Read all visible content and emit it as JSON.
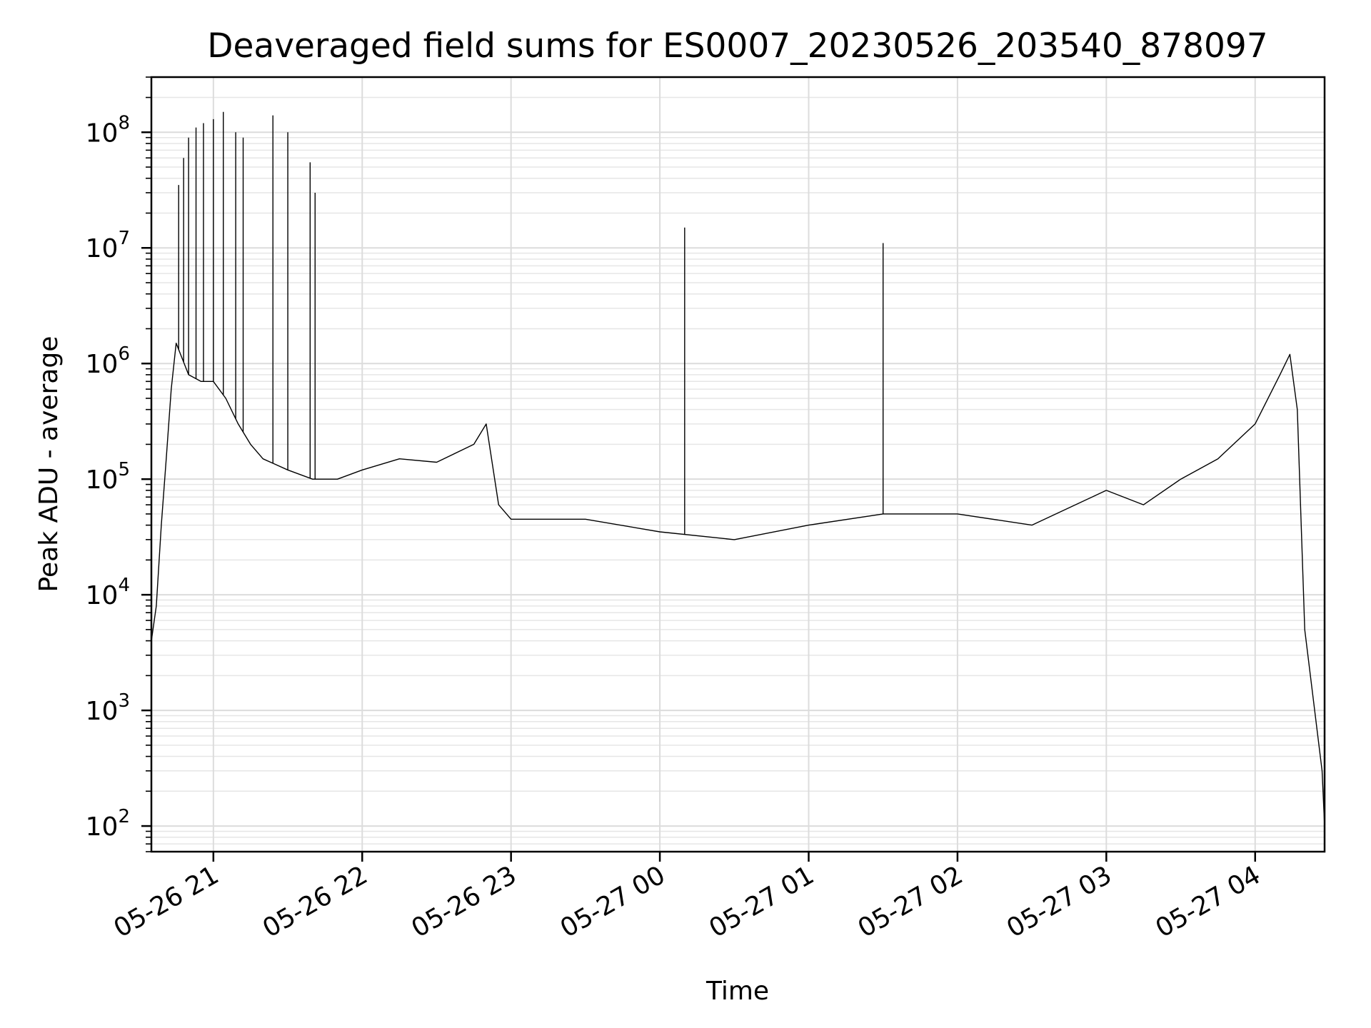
{
  "chart_data": {
    "type": "line",
    "title": "Deaveraged field sums for ES0007_20230526_203540_878097",
    "xlabel": "Time",
    "ylabel": "Peak ADU - average",
    "yscale": "log",
    "ylim": [
      60,
      300000000
    ],
    "xlim": [
      "2023-05-26 20:35",
      "2023-05-27 04:28"
    ],
    "grid": true,
    "legend": "none",
    "line_color": "#000000",
    "x_ticks": [
      {
        "value": "2023-05-26 21:00",
        "label": "05-26 21"
      },
      {
        "value": "2023-05-26 22:00",
        "label": "05-26 22"
      },
      {
        "value": "2023-05-26 23:00",
        "label": "05-26 23"
      },
      {
        "value": "2023-05-27 00:00",
        "label": "05-27 00"
      },
      {
        "value": "2023-05-27 01:00",
        "label": "05-27 01"
      },
      {
        "value": "2023-05-27 02:00",
        "label": "05-27 02"
      },
      {
        "value": "2023-05-27 03:00",
        "label": "05-27 03"
      },
      {
        "value": "2023-05-27 04:00",
        "label": "05-27 04"
      }
    ],
    "y_ticks": [
      {
        "value": 100,
        "base": "10",
        "exp": "2"
      },
      {
        "value": 1000,
        "base": "10",
        "exp": "3"
      },
      {
        "value": 10000,
        "base": "10",
        "exp": "4"
      },
      {
        "value": 100000,
        "base": "10",
        "exp": "5"
      },
      {
        "value": 1000000,
        "base": "10",
        "exp": "6"
      },
      {
        "value": 10000000,
        "base": "10",
        "exp": "7"
      },
      {
        "value": 100000000,
        "base": "10",
        "exp": "8"
      }
    ],
    "series": [
      {
        "values": [
          [
            "2023-05-26 20:35",
            4000
          ],
          [
            "2023-05-26 20:37",
            8000
          ],
          [
            "2023-05-26 20:39",
            40000
          ],
          [
            "2023-05-26 20:41",
            150000
          ],
          [
            "2023-05-26 20:43",
            600000
          ],
          [
            "2023-05-26 20:45",
            1500000
          ],
          [
            "2023-05-26 20:50",
            800000
          ],
          [
            "2023-05-26 20:55",
            700000
          ],
          [
            "2023-05-26 21:00",
            700000
          ],
          [
            "2023-05-26 21:05",
            500000
          ],
          [
            "2023-05-26 21:10",
            300000
          ],
          [
            "2023-05-26 21:15",
            200000
          ],
          [
            "2023-05-26 21:20",
            150000
          ],
          [
            "2023-05-26 21:30",
            120000
          ],
          [
            "2023-05-26 21:40",
            100000
          ],
          [
            "2023-05-26 21:50",
            100000
          ],
          [
            "2023-05-26 22:00",
            120000
          ],
          [
            "2023-05-26 22:15",
            150000
          ],
          [
            "2023-05-26 22:30",
            140000
          ],
          [
            "2023-05-26 22:45",
            200000
          ],
          [
            "2023-05-26 22:50",
            300000
          ],
          [
            "2023-05-26 22:55",
            60000
          ],
          [
            "2023-05-26 23:00",
            45000
          ],
          [
            "2023-05-26 23:30",
            45000
          ],
          [
            "2023-05-27 00:00",
            35000
          ],
          [
            "2023-05-27 00:30",
            30000
          ],
          [
            "2023-05-27 01:00",
            40000
          ],
          [
            "2023-05-27 01:30",
            50000
          ],
          [
            "2023-05-27 02:00",
            50000
          ],
          [
            "2023-05-27 02:30",
            40000
          ],
          [
            "2023-05-27 03:00",
            80000
          ],
          [
            "2023-05-27 03:15",
            60000
          ],
          [
            "2023-05-27 03:30",
            100000
          ],
          [
            "2023-05-27 03:45",
            150000
          ],
          [
            "2023-05-27 04:00",
            300000
          ],
          [
            "2023-05-27 04:10",
            800000
          ],
          [
            "2023-05-27 04:14",
            1200000
          ],
          [
            "2023-05-27 04:17",
            400000
          ],
          [
            "2023-05-27 04:20",
            5000
          ],
          [
            "2023-05-27 04:24",
            1000
          ],
          [
            "2023-05-27 04:27",
            300
          ],
          [
            "2023-05-27 04:28",
            100
          ]
        ]
      }
    ],
    "spikes": [
      [
        "2023-05-26 20:46",
        35000000
      ],
      [
        "2023-05-26 20:48",
        60000000
      ],
      [
        "2023-05-26 20:50",
        90000000
      ],
      [
        "2023-05-26 20:53",
        110000000
      ],
      [
        "2023-05-26 20:56",
        120000000
      ],
      [
        "2023-05-26 21:00",
        130000000
      ],
      [
        "2023-05-26 21:04",
        150000000
      ],
      [
        "2023-05-26 21:09",
        100000000
      ],
      [
        "2023-05-26 21:12",
        90000000
      ],
      [
        "2023-05-26 21:24",
        140000000
      ],
      [
        "2023-05-26 21:30",
        100000000
      ],
      [
        "2023-05-26 21:39",
        55000000
      ],
      [
        "2023-05-26 21:41",
        30000000
      ],
      [
        "2023-05-27 00:10",
        15000000
      ],
      [
        "2023-05-27 01:30",
        11000000
      ]
    ]
  }
}
